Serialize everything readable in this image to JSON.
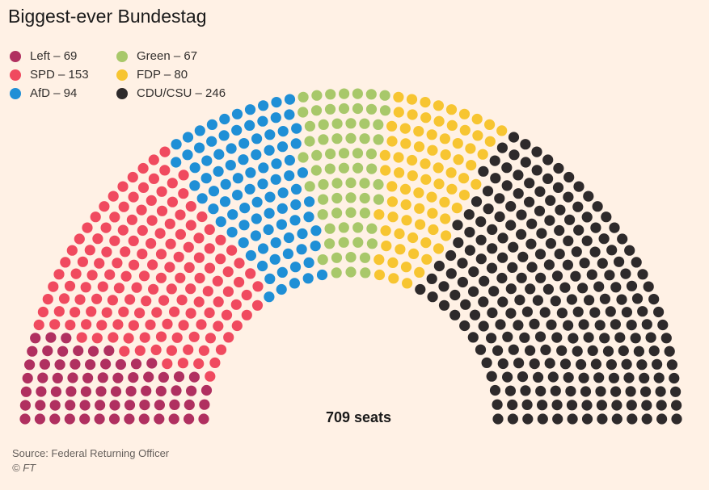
{
  "chart_data": {
    "type": "parliament",
    "title": "Biggest-ever Bundestag",
    "total_label": "709 seats",
    "total_seats": 709,
    "series": [
      {
        "name": "Left",
        "seats": 69,
        "legend_label": "Left – 69",
        "color": "#b03060"
      },
      {
        "name": "SPD",
        "seats": 153,
        "legend_label": "SPD – 153",
        "color": "#f04a5f"
      },
      {
        "name": "AfD",
        "seats": 94,
        "legend_label": "AfD – 94",
        "color": "#1f8fd6"
      },
      {
        "name": "Green",
        "seats": 67,
        "legend_label": "Green – 67",
        "color": "#a8c86a"
      },
      {
        "name": "FDP",
        "seats": 80,
        "legend_label": "FDP – 80",
        "color": "#f7c531"
      },
      {
        "name": "CDU/CSU",
        "seats": 246,
        "legend_label": "CDU/CSU – 246",
        "color": "#2e2a2b"
      }
    ]
  },
  "footer": {
    "source": "Source: Federal Returning Officer",
    "copyright": "© FT"
  }
}
